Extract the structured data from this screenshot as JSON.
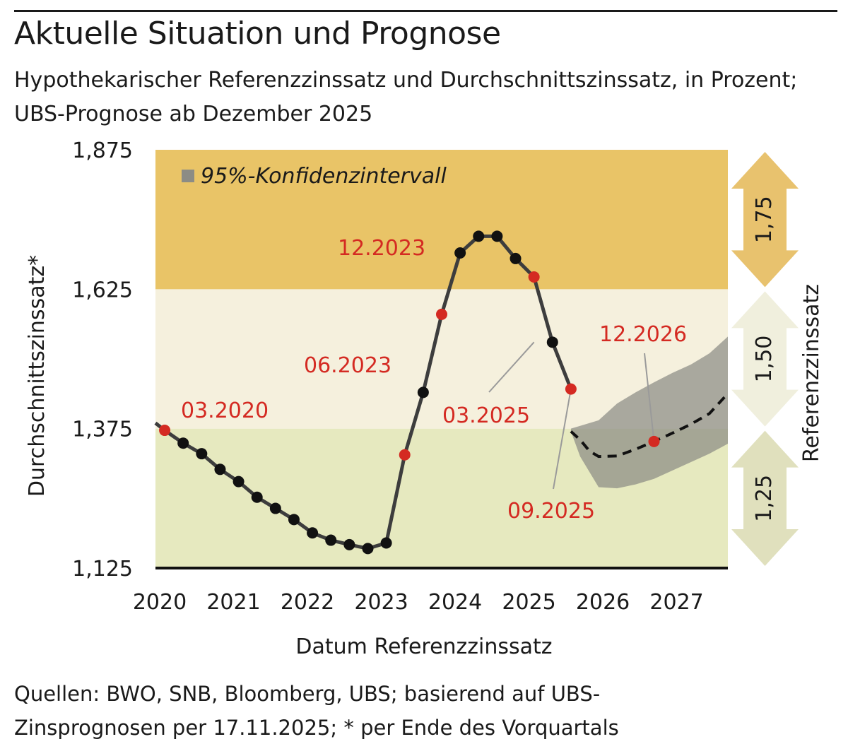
{
  "header": {
    "title": "Aktuelle Situation und Prognose",
    "subtitle": "Hypothekarischer Referenzzinssatz und Durchschnittszinssatz, in Prozent; UBS-Prognose ab Dezember 2025"
  },
  "footer": {
    "source": "Quellen: BWO, SNB, Bloomberg, UBS; basierend auf UBS-Zinsprognosen per 17.11.2025; * per Ende des Vorquartals"
  },
  "chart_data": {
    "type": "line",
    "title": "Aktuelle Situation und Prognose",
    "xlabel": "Datum Referenzzinssatz",
    "ylabel": "Durchschnittszinssatz*",
    "y2label": "Referenzzinssatz",
    "ylim": [
      1.125,
      1.875
    ],
    "xlim": [
      2020.0,
      2027.75
    ],
    "y_ticks": [
      "1,875",
      "1,625",
      "1,375",
      "1,125"
    ],
    "y_tick_values": [
      1.875,
      1.625,
      1.375,
      1.125
    ],
    "x_ticks": [
      "2020",
      "2021",
      "2022",
      "2023",
      "2024",
      "2025",
      "2026",
      "2027"
    ],
    "x_tick_values": [
      2020,
      2021,
      2022,
      2023,
      2024,
      2025,
      2026,
      2027
    ],
    "bands": [
      {
        "label": "1,25",
        "from": 1.125,
        "to": 1.375,
        "color": "#e6e9bf"
      },
      {
        "label": "1,50",
        "from": 1.375,
        "to": 1.625,
        "color": "#f5f0dd"
      },
      {
        "label": "1,75",
        "from": 1.625,
        "to": 1.875,
        "color": "#e9c467"
      }
    ],
    "arrow_colors": [
      "#e0e0bd",
      "#f0efdd",
      "#e8c26e"
    ],
    "legend": {
      "label": "95%-Konfidenzintervall",
      "color": "#8c8c85",
      "position": "top-left"
    },
    "colors": {
      "actual": "#3d3d3d",
      "forecast": "#111111",
      "marker": "#111111",
      "highlight": "#d42a22",
      "ci": "#8c8c85",
      "baseline": "#111111"
    },
    "series": [
      {
        "name": "Durchschnittszinssatz",
        "x": [
          2020.0,
          2020.125,
          2020.375,
          2020.625,
          2020.875,
          2021.125,
          2021.375,
          2021.625,
          2021.875,
          2022.125,
          2022.375,
          2022.625,
          2022.875,
          2023.125,
          2023.375,
          2023.625,
          2023.875,
          2024.125,
          2024.375,
          2024.625,
          2024.875,
          2025.125,
          2025.375,
          2025.625
        ],
        "values": [
          1.385,
          1.372,
          1.349,
          1.33,
          1.302,
          1.28,
          1.252,
          1.232,
          1.212,
          1.188,
          1.175,
          1.167,
          1.16,
          1.17,
          1.328,
          1.44,
          1.58,
          1.69,
          1.72,
          1.72,
          1.68,
          1.647,
          1.53,
          1.446
        ],
        "markers": [
          false,
          true,
          true,
          true,
          true,
          true,
          true,
          true,
          true,
          true,
          true,
          true,
          true,
          true,
          true,
          true,
          true,
          true,
          true,
          true,
          true,
          true,
          true,
          true
        ],
        "highlight": {
          "2020.125": "03.2020",
          "2023.375": "06.2023",
          "2023.875": "12.2023",
          "2025.125": "03.2025",
          "2025.625": "09.2025"
        }
      },
      {
        "name": "UBS-Prognose",
        "x": [
          2025.625,
          2025.75,
          2025.875,
          2026.0,
          2026.25,
          2026.5,
          2026.75,
          2027.0,
          2027.25,
          2027.5,
          2027.75
        ],
        "values": [
          1.37,
          1.355,
          1.335,
          1.325,
          1.326,
          1.338,
          1.352,
          1.367,
          1.383,
          1.402,
          1.438
        ],
        "highlight": {
          "2026.75": "12.2026"
        }
      }
    ],
    "confidence_interval": {
      "x": [
        2025.625,
        2025.75,
        2026.0,
        2026.25,
        2026.5,
        2026.75,
        2027.0,
        2027.25,
        2027.5,
        2027.75
      ],
      "lower": [
        1.37,
        1.325,
        1.27,
        1.268,
        1.275,
        1.285,
        1.3,
        1.315,
        1.33,
        1.348
      ],
      "upper": [
        1.375,
        1.38,
        1.39,
        1.42,
        1.44,
        1.458,
        1.475,
        1.49,
        1.51,
        1.54
      ]
    }
  }
}
